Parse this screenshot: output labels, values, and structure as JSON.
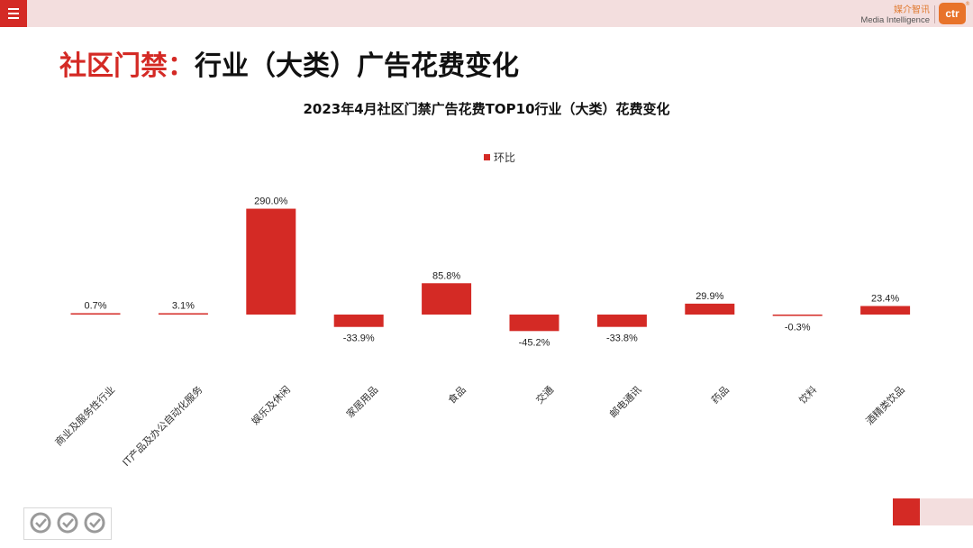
{
  "header": {
    "brand_cn": "媒介智讯",
    "brand_en": "Media Intelligence",
    "logo_text": "ctr",
    "logo_mark": "®"
  },
  "page_title_red": "社区门禁：",
  "page_title_black": "行业（大类）广告花费变化",
  "colors": {
    "accent": "#d42a25",
    "bar": "#d42a25",
    "topbar": "#f3dede",
    "brand": "#e8732a"
  },
  "chart_data": {
    "type": "bar",
    "title": "2023年4月社区门禁广告花费TOP10行业（大类）花费变化",
    "categories": [
      "商业及服务性行业",
      "IT产品及办公自动化服务",
      "娱乐及休闲",
      "家居用品",
      "食品",
      "交通",
      "邮电通讯",
      "药品",
      "饮料",
      "酒精类饮品"
    ],
    "series": [
      {
        "name": "环比",
        "values": [
          0.7,
          3.1,
          290.0,
          -33.9,
          85.8,
          -45.2,
          -33.8,
          29.9,
          -0.3,
          23.4
        ],
        "labels": [
          "0.7%",
          "3.1%",
          "290.0%",
          "-33.9%",
          "85.8%",
          "-45.2%",
          "-33.8%",
          "29.9%",
          "-0.3%",
          "23.4%"
        ]
      }
    ],
    "legend": "top-center",
    "grid": false
  }
}
